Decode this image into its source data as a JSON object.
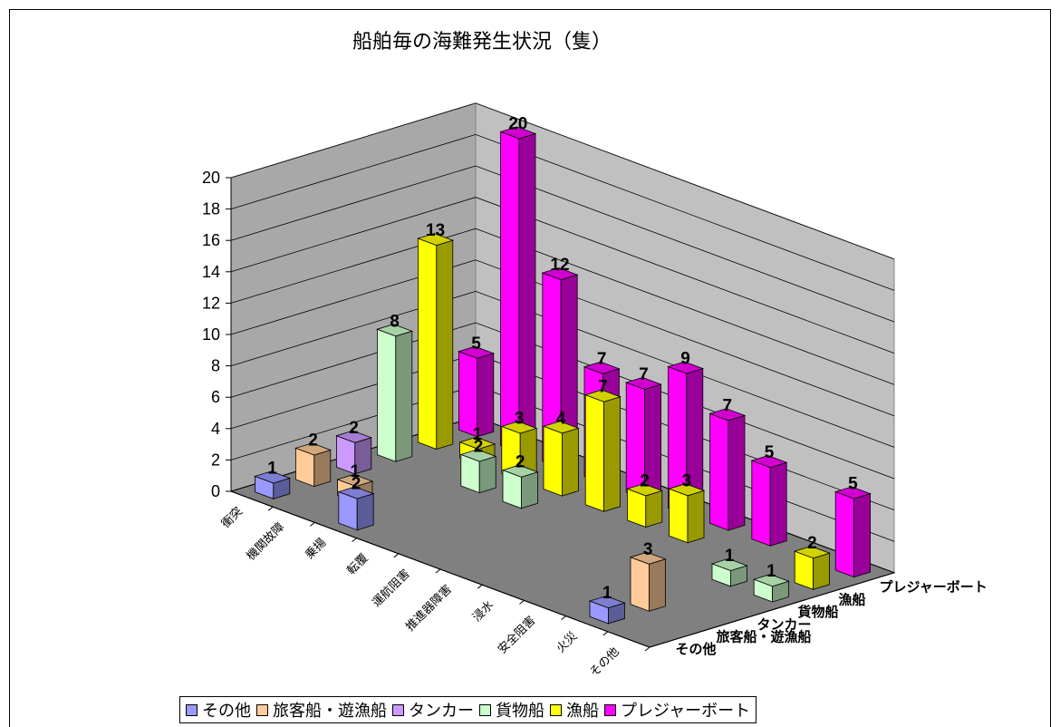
{
  "chart_data": {
    "type": "bar",
    "title": "船舶毎の海難発生状況（隻）",
    "categories": [
      "衝突",
      "機関故障",
      "乗揚",
      "転覆",
      "運航阻害",
      "推進器障害",
      "浸水",
      "安全阻害",
      "火災",
      "その他"
    ],
    "zlim": [
      0,
      20
    ],
    "zticks": [
      "0",
      "2",
      "4",
      "6",
      "8",
      "10",
      "12",
      "14",
      "16",
      "18",
      "20"
    ],
    "legend_position": "bottom",
    "grid": true,
    "series": [
      {
        "name": "その他",
        "color": "#9999FF",
        "values": [
          1,
          null,
          2,
          null,
          null,
          null,
          null,
          null,
          1,
          null
        ]
      },
      {
        "name": "旅客船・遊漁船",
        "color": "#FFCC99",
        "values": [
          2,
          1,
          null,
          null,
          null,
          null,
          null,
          null,
          3,
          null
        ]
      },
      {
        "name": "タンカー",
        "color": "#CC99FF",
        "values": [
          2,
          null,
          null,
          null,
          null,
          null,
          null,
          null,
          null,
          null
        ]
      },
      {
        "name": "貨物船",
        "color": "#CCFFCC",
        "values": [
          8,
          null,
          2,
          2,
          null,
          null,
          null,
          null,
          1,
          1
        ]
      },
      {
        "name": "漁船",
        "color": "#FFFF00",
        "values": [
          13,
          1,
          3,
          4,
          7,
          2,
          3,
          null,
          null,
          2
        ]
      },
      {
        "name": "プレジャーボート",
        "color": "#FF00FF",
        "values": [
          5,
          20,
          12,
          7,
          7,
          9,
          7,
          5,
          null,
          5
        ]
      }
    ]
  }
}
